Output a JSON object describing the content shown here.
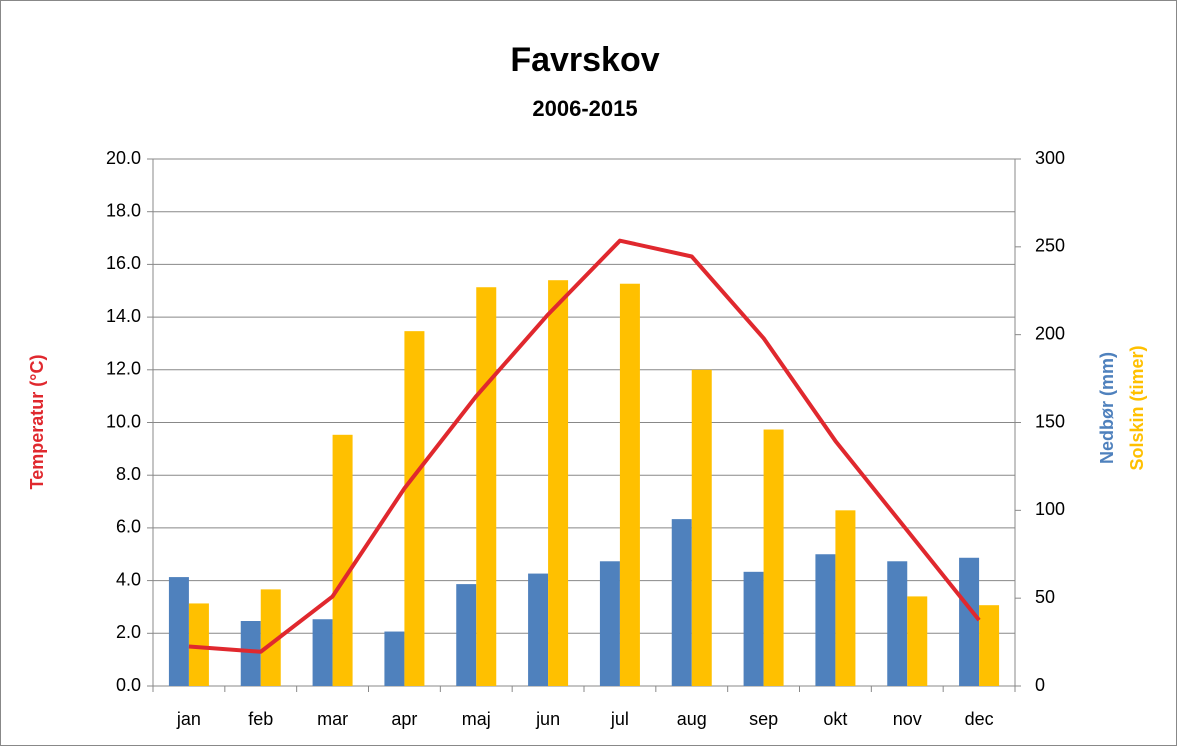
{
  "chart_data": {
    "type": "bar",
    "title": "Favrskov",
    "subtitle": "2006-2015",
    "categories": [
      "jan",
      "feb",
      "mar",
      "apr",
      "maj",
      "jun",
      "jul",
      "aug",
      "sep",
      "okt",
      "nov",
      "dec"
    ],
    "series": [
      {
        "name": "Temperatur (°C)",
        "type": "line",
        "color": "#e0282e",
        "values": [
          1.5,
          1.3,
          3.4,
          7.5,
          11.0,
          14.1,
          16.9,
          16.3,
          13.2,
          9.3,
          5.9,
          2.5
        ]
      },
      {
        "name": "Nedbør (mm)",
        "type": "bar",
        "axis": "y2",
        "color": "#4f81bd",
        "values": [
          62,
          37,
          38,
          31,
          58,
          64,
          71,
          95,
          65,
          75,
          71,
          73
        ]
      },
      {
        "name": "Solskin (timer)",
        "type": "bar",
        "axis": "y2",
        "color": "#ffc000",
        "values": [
          47,
          55,
          143,
          202,
          227,
          231,
          229,
          180,
          146,
          100,
          51,
          46
        ]
      }
    ],
    "ylim": [
      0,
      20
    ],
    "yticks": [
      {
        "value": 0,
        "label": "0.0"
      },
      {
        "value": 2,
        "label": "2.0"
      },
      {
        "value": 4,
        "label": "4.0"
      },
      {
        "value": 6,
        "label": "6.0"
      },
      {
        "value": 8,
        "label": "8.0"
      },
      {
        "value": 10,
        "label": "10.0"
      },
      {
        "value": 12,
        "label": "12.0"
      },
      {
        "value": 14,
        "label": "14.0"
      },
      {
        "value": 16,
        "label": "16.0"
      },
      {
        "value": 18,
        "label": "18.0"
      },
      {
        "value": 20,
        "label": "20.0"
      }
    ],
    "y2lim": [
      0,
      300
    ],
    "y2ticks": [
      0,
      50,
      100,
      150,
      200,
      250,
      300
    ],
    "grid": true
  }
}
